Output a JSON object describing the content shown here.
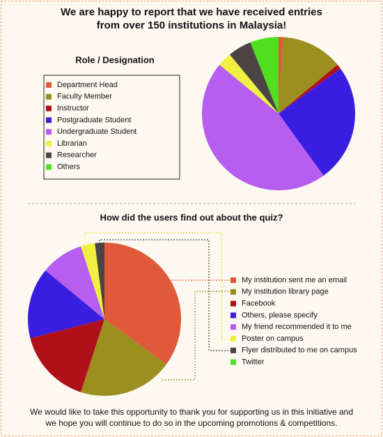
{
  "title": [
    "We are happy to report that we have received entries",
    "from over 150 institutions in Malaysia!"
  ],
  "chart_data": [
    {
      "type": "pie",
      "title": "Role / Designation",
      "categories": [
        "Department Head",
        "Faculty Member",
        "Instructor",
        "Postgraduate Student",
        "Undergraduate Student",
        "Librarian",
        "Researcher",
        "Others"
      ],
      "values": [
        1,
        13,
        1,
        25,
        46,
        3,
        5,
        6
      ],
      "colors": [
        "#e05a3a",
        "#9a8f1f",
        "#b0101a",
        "#3a1ee0",
        "#b65ef0",
        "#f0f040",
        "#4a4444",
        "#50e020"
      ]
    },
    {
      "type": "pie",
      "title": "How did the users find out about the quiz?",
      "categories": [
        "My institution sent me an email",
        "My institution library page",
        "Facebook",
        "Others, please specify",
        "My friend recommended it to me",
        "Poster on campus",
        "Flyer distributed to me on campus",
        "Twitter"
      ],
      "values": [
        35,
        20,
        16,
        15,
        9,
        3,
        2,
        0
      ],
      "colors": [
        "#e05a3a",
        "#9a8f1f",
        "#b0101a",
        "#3a1ee0",
        "#b65ef0",
        "#f0f040",
        "#4a4444",
        "#50e020"
      ]
    }
  ],
  "footer": [
    "We would like to take this opportunity to thank you for supporting us in this initiative and",
    "we hope you will continue to do so in the upcoming promotions & competitions."
  ]
}
